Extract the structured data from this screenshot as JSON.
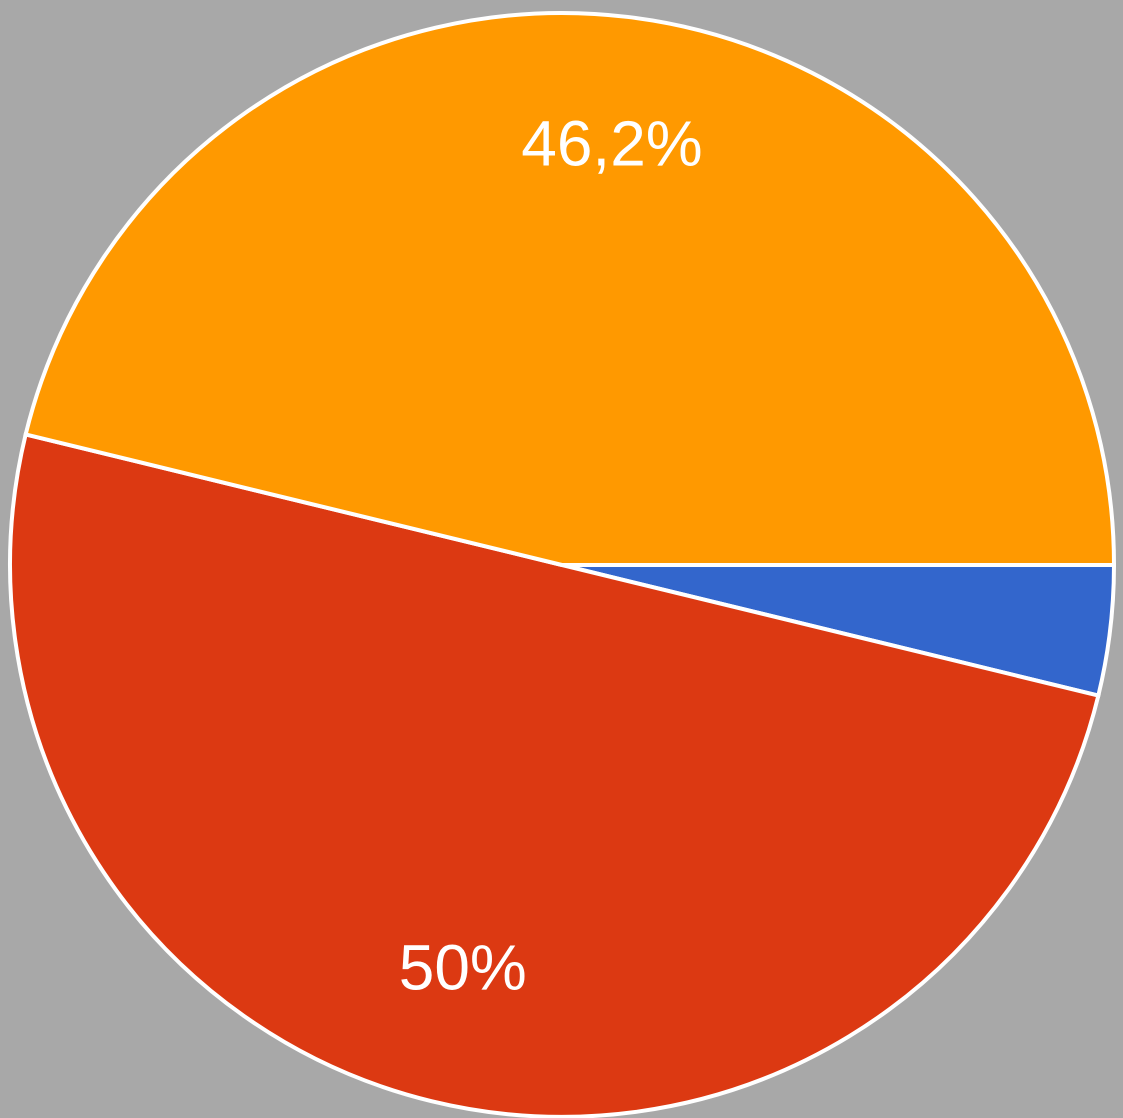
{
  "chart_data": {
    "type": "pie",
    "values": [
      3.8,
      50,
      46.2
    ],
    "value_labels": [
      null,
      "50%",
      "46,2%"
    ],
    "colors": [
      "#3366cc",
      "#dc3912",
      "#ff9900"
    ]
  }
}
